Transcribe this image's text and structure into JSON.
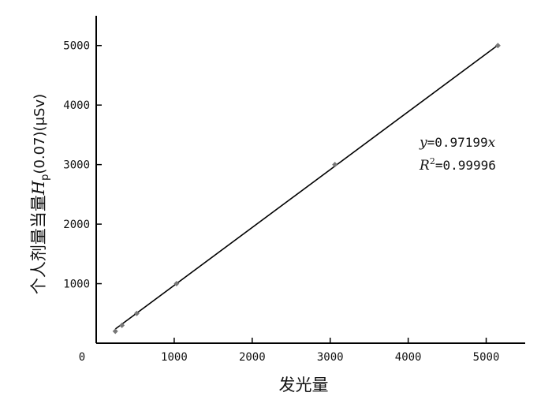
{
  "chart_data": {
    "type": "scatter",
    "title": "",
    "xlabel": "发光量",
    "ylabel": "个人剂量当量",
    "ylabel_symbol": "H",
    "ylabel_subscript": "p",
    "ylabel_suffix": "(0.07)(μSv)",
    "xlim": [
      0,
      5500
    ],
    "ylim": [
      0,
      5500
    ],
    "x_ticks": [
      0,
      1000,
      2000,
      3000,
      4000,
      5000
    ],
    "y_ticks": [
      1000,
      2000,
      3000,
      4000,
      5000
    ],
    "x": [
      245,
      330,
      520,
      1030,
      3060,
      5150
    ],
    "y": [
      200,
      300,
      500,
      1000,
      3000,
      5000
    ],
    "fit_line": {
      "slope": 0.97199,
      "x_range": [
        245,
        5150
      ]
    },
    "equation": {
      "y_var": "y",
      "y_rest": "=0.97199",
      "y_x": "x",
      "r2_var": "R",
      "r2_sup": "2",
      "r2_rest": "=0.99996"
    },
    "grid": false,
    "legend": "none",
    "colors": {
      "axis": "#000000",
      "line": "#000000",
      "marker": "#777777"
    }
  }
}
